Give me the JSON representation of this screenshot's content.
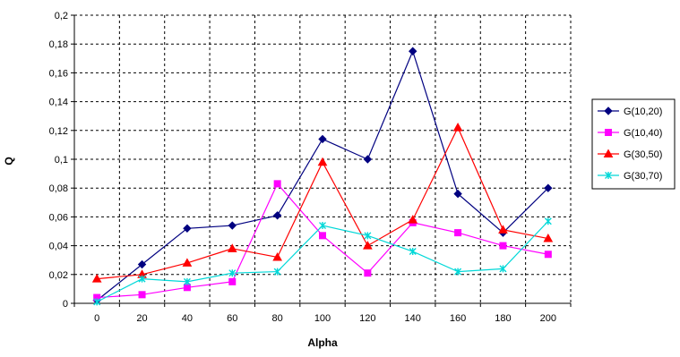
{
  "chart_data": {
    "type": "line",
    "xlabel": "Alpha",
    "ylabel": "Q",
    "x": [
      0,
      20,
      40,
      60,
      80,
      100,
      120,
      140,
      160,
      180,
      200
    ],
    "x_tick_labels": [
      "0",
      "20",
      "40",
      "60",
      "80",
      "100",
      "120",
      "140",
      "160",
      "180",
      "200"
    ],
    "y_tick_labels": [
      "0",
      "0,02",
      "0,04",
      "0,06",
      "0,08",
      "0,1",
      "0,12",
      "0,14",
      "0,16",
      "0,18",
      "0,2"
    ],
    "ylim": [
      0,
      0.2
    ],
    "grid": "dashed",
    "legend_position": "right",
    "series": [
      {
        "name": "G(10,20)",
        "color": "#000080",
        "marker": "diamond",
        "values": [
          0.002,
          0.027,
          0.052,
          0.054,
          0.061,
          0.114,
          0.1,
          0.175,
          0.076,
          0.049,
          0.08
        ]
      },
      {
        "name": "G(10,40)",
        "color": "#ff00ff",
        "marker": "square",
        "values": [
          0.004,
          0.006,
          0.011,
          0.015,
          0.083,
          0.047,
          0.021,
          0.056,
          0.049,
          0.04,
          0.034
        ]
      },
      {
        "name": "G(30,50)",
        "color": "#ff0000",
        "marker": "triangle",
        "values": [
          0.017,
          0.02,
          0.028,
          0.038,
          0.032,
          0.098,
          0.04,
          0.058,
          0.122,
          0.051,
          0.045
        ]
      },
      {
        "name": "G(30,70)",
        "color": "#00d8d8",
        "marker": "star",
        "values": [
          0.001,
          0.017,
          0.015,
          0.021,
          0.022,
          0.054,
          0.047,
          0.036,
          0.022,
          0.024,
          0.057
        ]
      }
    ]
  }
}
